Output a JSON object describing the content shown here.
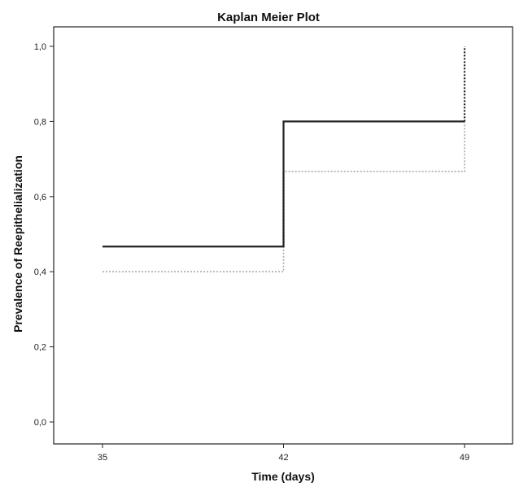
{
  "chart_data": {
    "type": "line",
    "title": "Kaplan Meier Plot",
    "xlabel": "Time (days)",
    "ylabel": "Prevalence of Reepithelialization",
    "xlim": [
      35,
      49
    ],
    "ylim": [
      0.0,
      1.0
    ],
    "x_ticks": [
      35,
      42,
      49
    ],
    "x_tick_labels": [
      "35",
      "42",
      "49"
    ],
    "y_ticks": [
      0.0,
      0.2,
      0.4,
      0.6,
      0.8,
      1.0
    ],
    "y_tick_labels": [
      "0,0",
      "0,2",
      "0,4",
      "0,6",
      "0,8",
      "1,0"
    ],
    "step": true,
    "grid": false,
    "series": [
      {
        "style": "solid",
        "color": "#222222",
        "points": [
          [
            35,
            0.467
          ],
          [
            42,
            0.467
          ],
          [
            42,
            0.667
          ],
          [
            42,
            0.8
          ],
          [
            49,
            0.8
          ]
        ],
        "dotted_after": [
          [
            42,
            0.467
          ],
          [
            42,
            0.667
          ],
          [
            49,
            0.8
          ],
          [
            49,
            1.0
          ]
        ]
      },
      {
        "style": "dotted",
        "color": "#aaaaaa",
        "points": [
          [
            35,
            0.4
          ],
          [
            42,
            0.4
          ],
          [
            42,
            0.667
          ],
          [
            49,
            0.667
          ],
          [
            49,
            0.8
          ]
        ]
      }
    ]
  }
}
